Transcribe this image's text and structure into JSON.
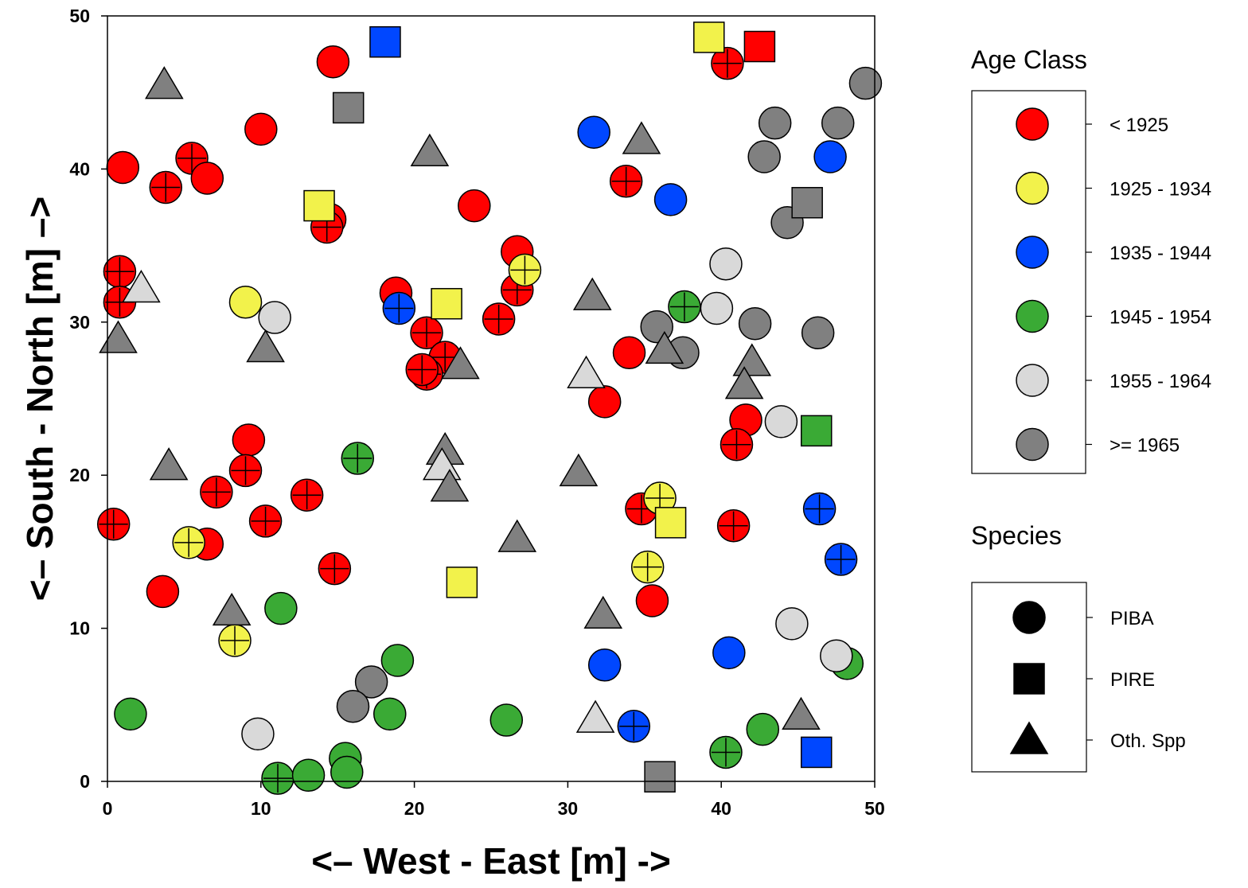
{
  "chart_data": {
    "type": "scatter",
    "xlabel": "<– West - East [m] ->",
    "ylabel": "<– South - North [m] –>",
    "xlim": [
      0,
      50
    ],
    "ylim": [
      0,
      50
    ],
    "x_ticks": [
      "0",
      "10",
      "20",
      "30",
      "40",
      "50"
    ],
    "y_ticks": [
      "0",
      "10",
      "20",
      "30",
      "40",
      "50"
    ],
    "grid": false,
    "legend_placement": "right",
    "age_legend": {
      "title": "Age Class",
      "items": [
        {
          "key": "a",
          "label": "< 1925",
          "color": "#ff0000"
        },
        {
          "key": "b",
          "label": "1925 - 1934",
          "color": "#f2f24b"
        },
        {
          "key": "c",
          "label": "1935 - 1944",
          "color": "#0047ff"
        },
        {
          "key": "d",
          "label": "1945 - 1954",
          "color": "#3aaa35"
        },
        {
          "key": "e",
          "label": "1955 - 1964",
          "color": "#d9d9d9"
        },
        {
          "key": "f",
          "label": ">= 1965",
          "color": "#808080"
        }
      ]
    },
    "species_legend": {
      "title": "Species",
      "items": [
        {
          "key": "c",
          "label": "PIBA",
          "shape": "circle"
        },
        {
          "key": "s",
          "label": "PIRE",
          "shape": "square"
        },
        {
          "key": "t",
          "label": "Oth. Spp",
          "shape": "triangle"
        }
      ]
    },
    "point_fields": [
      "x",
      "y",
      "age_class",
      "species",
      "crosshair"
    ],
    "points": [
      [
        14.7,
        47.0,
        "a",
        "c",
        0
      ],
      [
        10.0,
        42.6,
        "a",
        "c",
        0
      ],
      [
        5.5,
        40.7,
        "a",
        "c",
        1
      ],
      [
        6.5,
        39.4,
        "a",
        "c",
        0
      ],
      [
        1.0,
        40.1,
        "a",
        "c",
        0
      ],
      [
        3.8,
        38.8,
        "a",
        "c",
        1
      ],
      [
        14.5,
        36.7,
        "a",
        "c",
        0
      ],
      [
        14.3,
        36.2,
        "a",
        "c",
        1
      ],
      [
        0.8,
        33.3,
        "a",
        "c",
        1
      ],
      [
        0.8,
        31.3,
        "a",
        "c",
        1
      ],
      [
        23.9,
        37.6,
        "a",
        "c",
        0
      ],
      [
        26.7,
        34.6,
        "a",
        "c",
        0
      ],
      [
        26.7,
        32.1,
        "a",
        "c",
        1
      ],
      [
        18.8,
        31.9,
        "a",
        "c",
        0
      ],
      [
        25.5,
        30.2,
        "a",
        "c",
        1
      ],
      [
        20.8,
        29.3,
        "a",
        "c",
        1
      ],
      [
        22.0,
        27.7,
        "a",
        "c",
        1
      ],
      [
        20.8,
        26.6,
        "a",
        "c",
        1
      ],
      [
        20.5,
        26.9,
        "a",
        "c",
        1
      ],
      [
        33.8,
        39.2,
        "a",
        "c",
        1
      ],
      [
        34.0,
        28.0,
        "a",
        "c",
        0
      ],
      [
        32.4,
        24.8,
        "a",
        "c",
        0
      ],
      [
        40.4,
        46.9,
        "a",
        "c",
        1
      ],
      [
        41.6,
        23.6,
        "a",
        "c",
        0
      ],
      [
        41.0,
        22.0,
        "a",
        "c",
        1
      ],
      [
        9.2,
        22.3,
        "a",
        "c",
        0
      ],
      [
        9.0,
        20.3,
        "a",
        "c",
        1
      ],
      [
        7.1,
        18.9,
        "a",
        "c",
        1
      ],
      [
        13.0,
        18.7,
        "a",
        "c",
        1
      ],
      [
        10.3,
        17.0,
        "a",
        "c",
        1
      ],
      [
        0.4,
        16.8,
        "a",
        "c",
        1
      ],
      [
        6.5,
        15.5,
        "a",
        "c",
        0
      ],
      [
        14.8,
        13.9,
        "a",
        "c",
        1
      ],
      [
        3.6,
        12.4,
        "a",
        "c",
        0
      ],
      [
        34.8,
        17.8,
        "a",
        "c",
        1
      ],
      [
        40.8,
        16.7,
        "a",
        "c",
        1
      ],
      [
        35.5,
        11.8,
        "a",
        "c",
        0
      ],
      [
        9.0,
        31.3,
        "b",
        "c",
        0
      ],
      [
        27.2,
        33.4,
        "b",
        "c",
        1
      ],
      [
        36.0,
        18.5,
        "b",
        "c",
        1
      ],
      [
        5.3,
        15.6,
        "b",
        "c",
        1
      ],
      [
        35.2,
        14.0,
        "b",
        "c",
        1
      ],
      [
        8.3,
        9.2,
        "b",
        "c",
        1
      ],
      [
        31.7,
        42.4,
        "c",
        "c",
        0
      ],
      [
        36.7,
        38.0,
        "c",
        "c",
        0
      ],
      [
        47.1,
        40.8,
        "c",
        "c",
        0
      ],
      [
        19.0,
        30.9,
        "c",
        "c",
        1
      ],
      [
        46.4,
        17.8,
        "c",
        "c",
        1
      ],
      [
        47.8,
        14.5,
        "c",
        "c",
        1
      ],
      [
        40.5,
        8.4,
        "c",
        "c",
        0
      ],
      [
        32.4,
        7.6,
        "c",
        "c",
        0
      ],
      [
        34.3,
        3.6,
        "c",
        "c",
        1
      ],
      [
        37.6,
        31.0,
        "d",
        "c",
        1
      ],
      [
        16.3,
        21.1,
        "d",
        "c",
        1
      ],
      [
        11.3,
        11.3,
        "d",
        "c",
        0
      ],
      [
        18.9,
        7.9,
        "d",
        "c",
        0
      ],
      [
        1.5,
        4.4,
        "d",
        "c",
        0
      ],
      [
        18.4,
        4.4,
        "d",
        "c",
        0
      ],
      [
        26.0,
        4.0,
        "d",
        "c",
        0
      ],
      [
        15.5,
        1.5,
        "d",
        "c",
        0
      ],
      [
        15.6,
        0.6,
        "d",
        "c",
        0
      ],
      [
        11.1,
        0.2,
        "d",
        "c",
        1
      ],
      [
        13.1,
        0.4,
        "d",
        "c",
        0
      ],
      [
        40.3,
        1.9,
        "d",
        "c",
        1
      ],
      [
        42.7,
        3.4,
        "d",
        "c",
        0
      ],
      [
        48.2,
        7.7,
        "d",
        "c",
        0
      ],
      [
        10.9,
        30.3,
        "e",
        "c",
        0
      ],
      [
        40.3,
        33.8,
        "e",
        "c",
        0
      ],
      [
        39.7,
        30.9,
        "e",
        "c",
        0
      ],
      [
        43.9,
        23.5,
        "e",
        "c",
        0
      ],
      [
        44.6,
        10.3,
        "e",
        "c",
        0
      ],
      [
        47.5,
        8.2,
        "e",
        "c",
        0
      ],
      [
        9.8,
        3.1,
        "e",
        "c",
        0
      ],
      [
        49.4,
        45.6,
        "f",
        "c",
        0
      ],
      [
        43.5,
        43.0,
        "f",
        "c",
        0
      ],
      [
        47.6,
        43.0,
        "f",
        "c",
        0
      ],
      [
        42.8,
        40.8,
        "f",
        "c",
        0
      ],
      [
        44.3,
        36.5,
        "f",
        "c",
        0
      ],
      [
        35.8,
        29.7,
        "f",
        "c",
        0
      ],
      [
        37.5,
        28.0,
        "f",
        "c",
        0
      ],
      [
        42.2,
        29.9,
        "f",
        "c",
        0
      ],
      [
        46.3,
        29.3,
        "f",
        "c",
        0
      ],
      [
        17.2,
        6.5,
        "f",
        "c",
        0
      ],
      [
        16.0,
        4.9,
        "f",
        "c",
        0
      ],
      [
        18.1,
        48.3,
        "c",
        "s",
        0
      ],
      [
        39.2,
        48.6,
        "b",
        "s",
        0
      ],
      [
        42.5,
        48.0,
        "a",
        "s",
        0
      ],
      [
        15.7,
        44.0,
        "f",
        "s",
        0
      ],
      [
        13.8,
        37.6,
        "b",
        "s",
        0
      ],
      [
        22.1,
        31.2,
        "b",
        "s",
        0
      ],
      [
        45.6,
        37.8,
        "f",
        "s",
        0
      ],
      [
        46.2,
        22.9,
        "d",
        "s",
        0
      ],
      [
        36.7,
        16.9,
        "b",
        "s",
        0
      ],
      [
        23.1,
        13.0,
        "b",
        "s",
        0
      ],
      [
        46.2,
        1.9,
        "c",
        "s",
        0
      ],
      [
        36.0,
        0.3,
        "f",
        "s",
        0
      ],
      [
        3.7,
        45.5,
        "f",
        "t",
        0
      ],
      [
        21.0,
        41.1,
        "f",
        "t",
        0
      ],
      [
        34.8,
        41.9,
        "f",
        "t",
        0
      ],
      [
        2.2,
        32.2,
        "e",
        "t",
        0
      ],
      [
        0.7,
        28.9,
        "f",
        "t",
        0
      ],
      [
        10.3,
        28.3,
        "f",
        "t",
        0
      ],
      [
        31.6,
        31.7,
        "f",
        "t",
        0
      ],
      [
        23.0,
        27.2,
        "f",
        "t",
        0
      ],
      [
        31.2,
        26.6,
        "e",
        "t",
        0
      ],
      [
        36.3,
        28.2,
        "f",
        "t",
        0
      ],
      [
        42.0,
        27.4,
        "f",
        "t",
        0
      ],
      [
        41.5,
        25.9,
        "f",
        "t",
        0
      ],
      [
        4.0,
        20.6,
        "f",
        "t",
        0
      ],
      [
        22.0,
        21.6,
        "f",
        "t",
        0
      ],
      [
        21.8,
        20.6,
        "e",
        "t",
        0
      ],
      [
        22.3,
        19.2,
        "f",
        "t",
        0
      ],
      [
        30.7,
        20.2,
        "f",
        "t",
        0
      ],
      [
        26.7,
        15.9,
        "f",
        "t",
        0
      ],
      [
        8.1,
        11.1,
        "f",
        "t",
        0
      ],
      [
        32.3,
        10.9,
        "f",
        "t",
        0
      ],
      [
        31.8,
        4.1,
        "e",
        "t",
        0
      ],
      [
        45.2,
        4.3,
        "f",
        "t",
        0
      ]
    ]
  }
}
